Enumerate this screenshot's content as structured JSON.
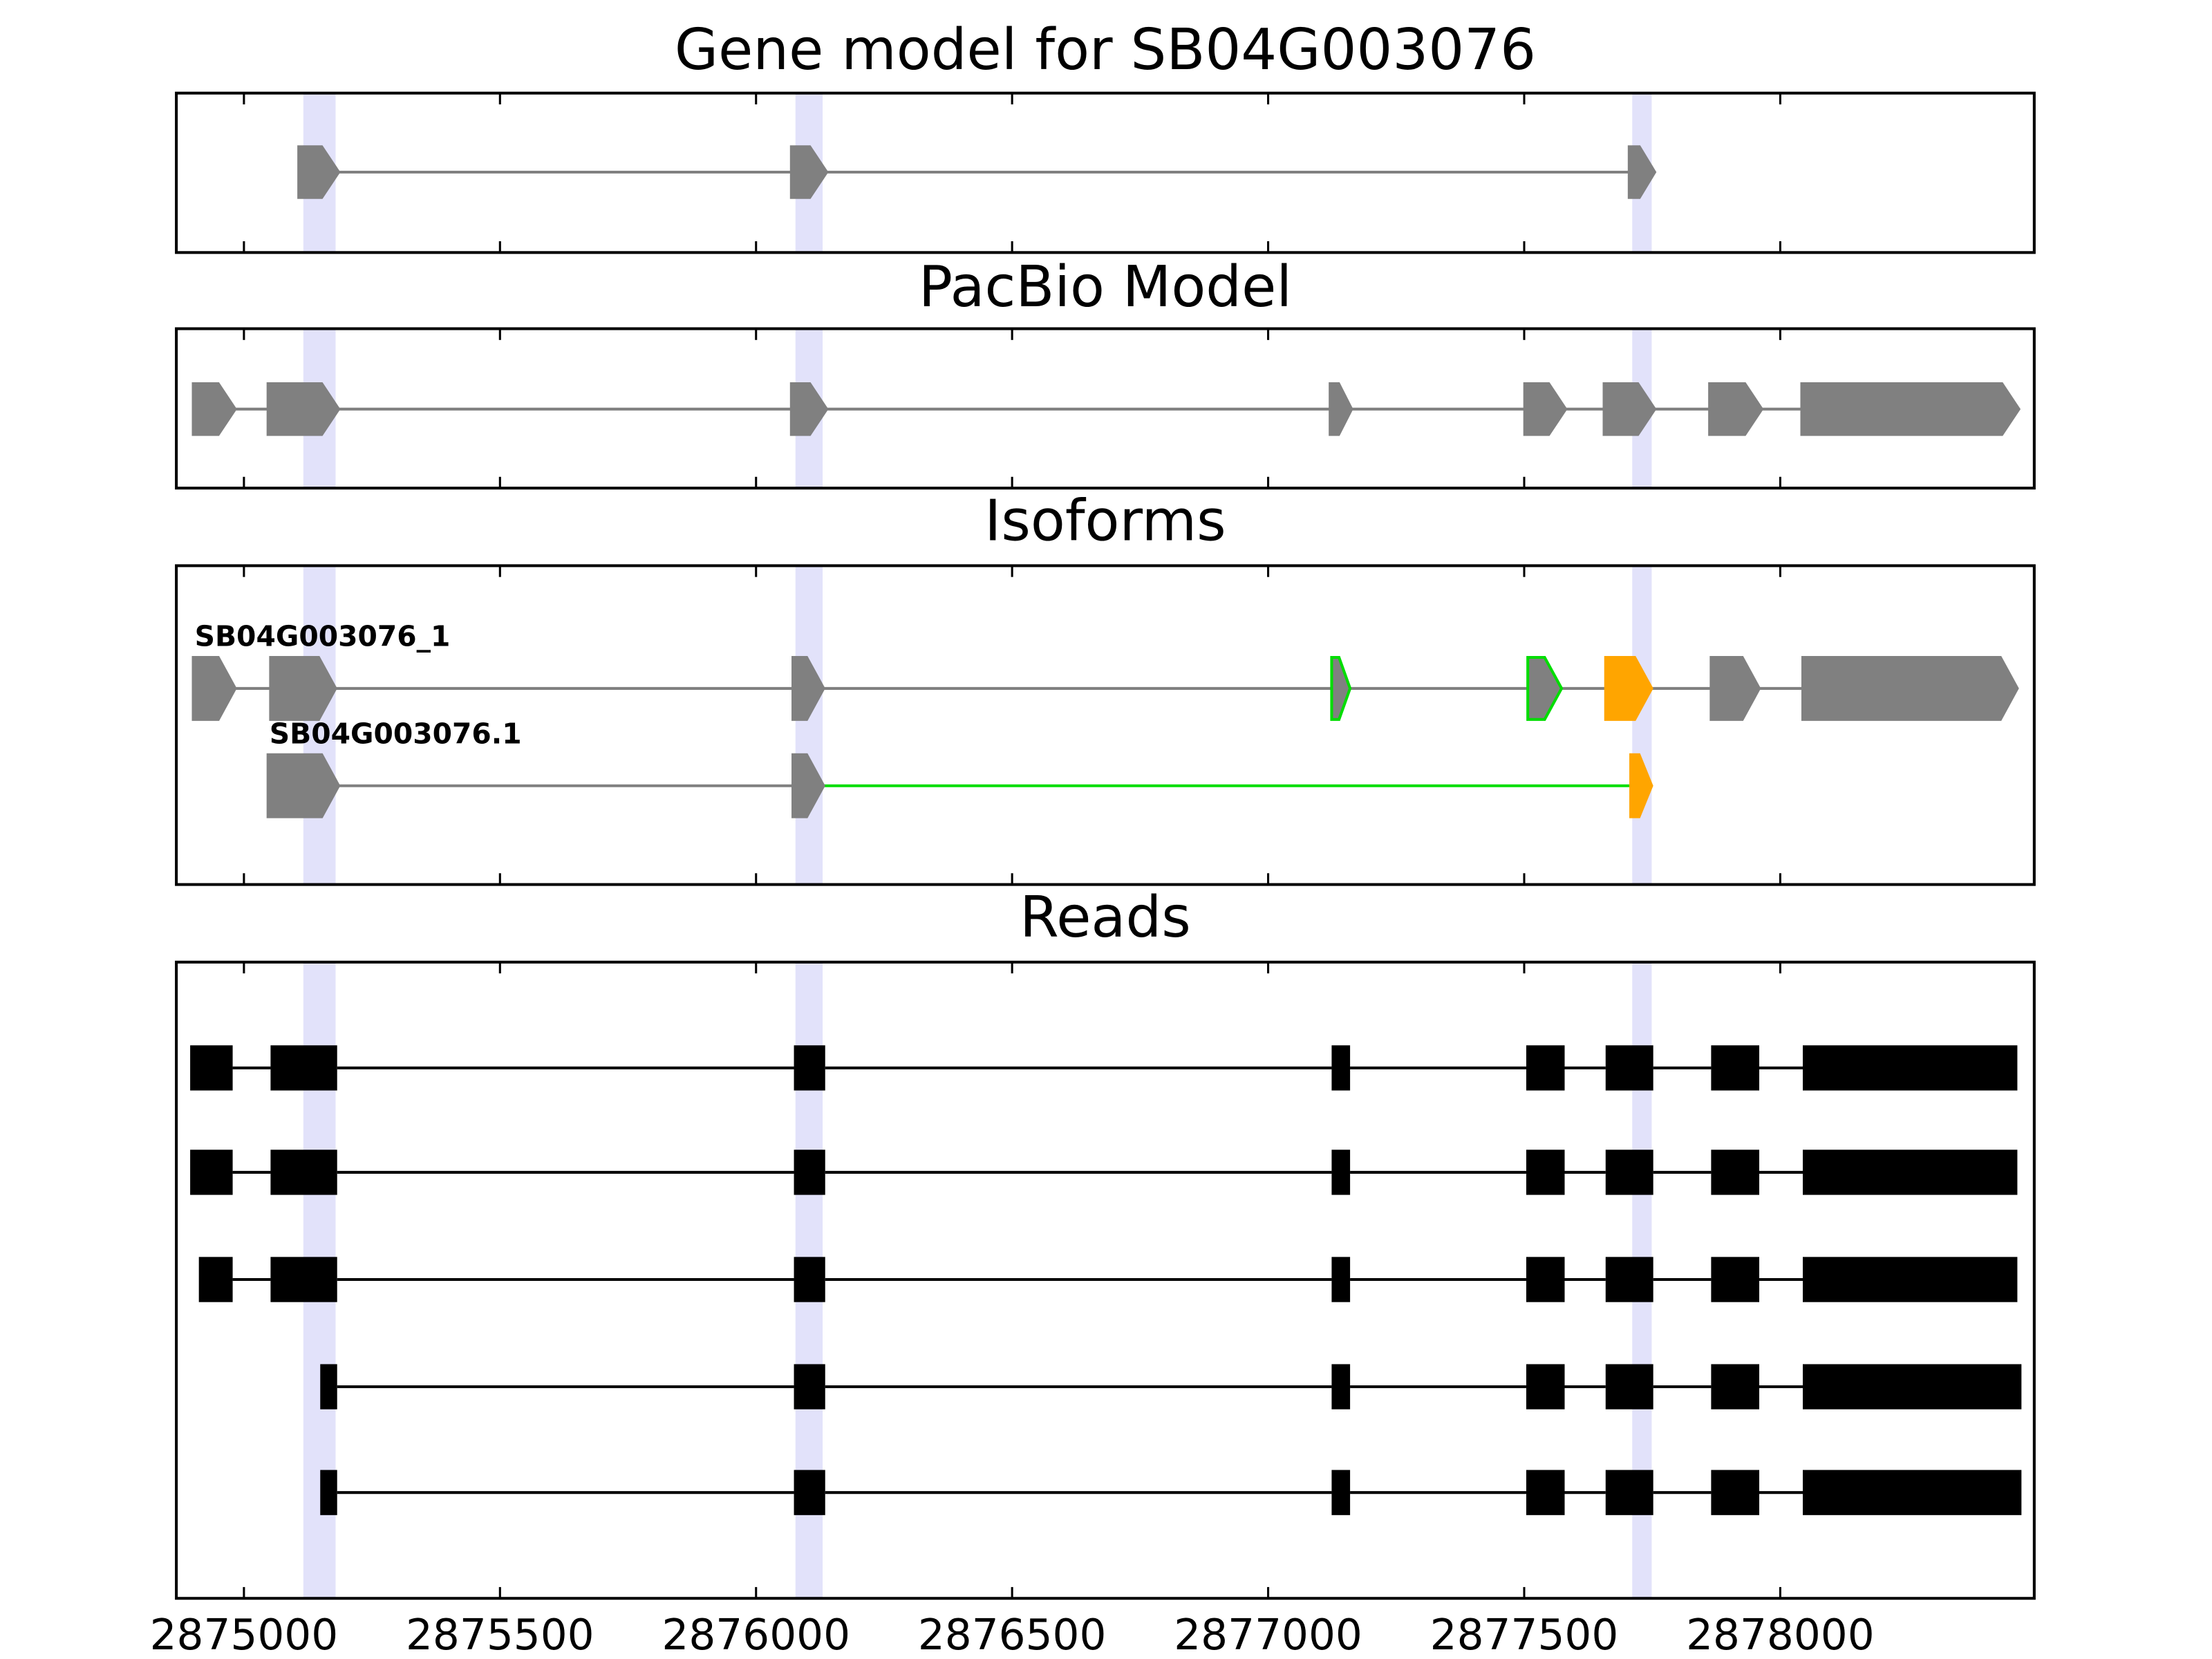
{
  "chart_data": {
    "type": "gene-tracks",
    "xlim": [
      2874868,
      2878496
    ],
    "xticks": [
      2875000,
      2875500,
      2876000,
      2876500,
      2877000,
      2877500,
      2878000
    ],
    "highlight_color": "#e2e2fa",
    "highlights": [
      [
        2875116,
        2875179
      ],
      [
        2876077,
        2876130
      ],
      [
        2877711,
        2877749
      ]
    ],
    "panels": [
      {
        "title": "Gene model for SB04G003076",
        "shape": "arrow",
        "color": "#808080",
        "tracks": [
          {
            "exons": [
              [
                2875107,
                2875185
              ],
              [
                2876069,
                2876138
              ],
              [
                2877705,
                2877755
              ]
            ]
          }
        ]
      },
      {
        "title": "PacBio Model",
        "shape": "arrow",
        "color": "#808080",
        "tracks": [
          {
            "exons": [
              [
                2874901,
                2874983
              ],
              [
                2875047,
                2875185
              ],
              [
                2876069,
                2876138
              ],
              [
                2877121,
                2877163
              ],
              [
                2877501,
                2877581
              ],
              [
                2877656,
                2877755
              ],
              [
                2877862,
                2877964
              ],
              [
                2878042,
                2878466
              ]
            ]
          }
        ]
      },
      {
        "title": "Isoforms",
        "shape": "arrow",
        "color": "#808080",
        "tracks": [
          {
            "name": "SB04G003076_1",
            "exons": [
              [
                2874901,
                2874983
              ],
              [
                2875052,
                2875179
              ],
              [
                2876072,
                2876132
              ],
              [
                2877124,
                2877160
              ],
              [
                2877507,
                2877573
              ],
              [
                2877659,
                2877749
              ],
              [
                2877865,
                2877959
              ],
              [
                2878044,
                2878463
              ]
            ],
            "exon_fills": [
              "#808080",
              "#808080",
              "#808080",
              "#808080",
              "#808080",
              "#ffa500",
              "#808080",
              "#808080"
            ],
            "exon_edges": [
              "#808080",
              "#808080",
              "#808080",
              "#00dd00",
              "#00dd00",
              "#ffa500",
              "#808080",
              "#808080"
            ],
            "intron_colors": [
              "#808080",
              "#808080",
              "#808080",
              "#808080",
              "#808080",
              "#808080",
              "#808080"
            ]
          },
          {
            "name": "SB04G003076.1",
            "exons": [
              [
                2875047,
                2875185
              ],
              [
                2876072,
                2876132
              ],
              [
                2877708,
                2877749
              ]
            ],
            "exon_fills": [
              "#808080",
              "#808080",
              "#ffa500"
            ],
            "exon_edges": [
              "#808080",
              "#808080",
              "#ffa500"
            ],
            "intron_colors": [
              "#808080",
              "#00dd00"
            ]
          }
        ]
      },
      {
        "title": "Reads",
        "shape": "box",
        "color": "#000000",
        "tracks": [
          {
            "exons": [
              [
                2874895,
                2874978
              ],
              [
                2875052,
                2875182
              ],
              [
                2876074,
                2876135
              ],
              [
                2877124,
                2877160
              ],
              [
                2877504,
                2877579
              ],
              [
                2877659,
                2877752
              ],
              [
                2877865,
                2877959
              ],
              [
                2878044,
                2878463
              ]
            ]
          },
          {
            "exons": [
              [
                2874895,
                2874978
              ],
              [
                2875052,
                2875182
              ],
              [
                2876074,
                2876135
              ],
              [
                2877124,
                2877160
              ],
              [
                2877504,
                2877579
              ],
              [
                2877659,
                2877752
              ],
              [
                2877865,
                2877959
              ],
              [
                2878044,
                2878463
              ]
            ]
          },
          {
            "exons": [
              [
                2874912,
                2874978
              ],
              [
                2875052,
                2875182
              ],
              [
                2876074,
                2876135
              ],
              [
                2877124,
                2877160
              ],
              [
                2877504,
                2877579
              ],
              [
                2877659,
                2877752
              ],
              [
                2877865,
                2877959
              ],
              [
                2878044,
                2878463
              ]
            ]
          },
          {
            "exons": [
              [
                2875149,
                2875182
              ],
              [
                2876074,
                2876135
              ],
              [
                2877124,
                2877160
              ],
              [
                2877504,
                2877579
              ],
              [
                2877659,
                2877752
              ],
              [
                2877865,
                2877959
              ],
              [
                2878044,
                2878471
              ]
            ]
          },
          {
            "exons": [
              [
                2875149,
                2875182
              ],
              [
                2876074,
                2876135
              ],
              [
                2877124,
                2877160
              ],
              [
                2877504,
                2877579
              ],
              [
                2877659,
                2877752
              ],
              [
                2877865,
                2877959
              ],
              [
                2878044,
                2878471
              ]
            ]
          }
        ]
      }
    ]
  }
}
